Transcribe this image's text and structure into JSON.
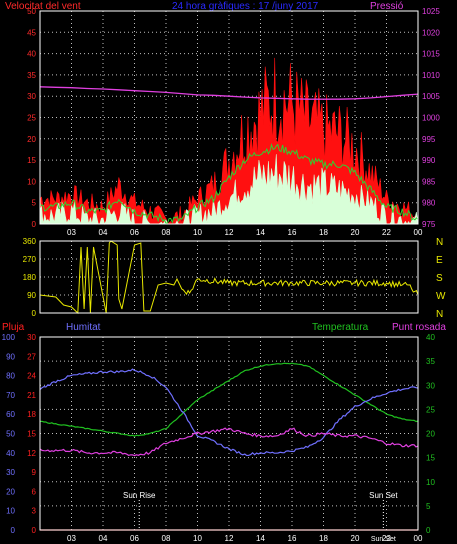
{
  "colors": {
    "wind_axis": "#ff2a2a",
    "pressure": "#e040e0",
    "title": "#2a2aff",
    "gust": "#ff1010",
    "wind_avg": "#30d030",
    "wind_min": "#d8ffd8",
    "direction": "#e8e800",
    "rain": "#ff2020",
    "humidity": "#7070ff",
    "temperature": "#20c020",
    "dewpoint": "#e040e0",
    "frame": "#ffffff",
    "grid": "#ffffff",
    "sun_text": "#ffffff"
  },
  "chart_data": [
    {
      "type": "line",
      "name": "wind_pressure",
      "title": "24 hora gràfiques : 17 /juny 2017",
      "ylabel_left": "Velocitat del vent",
      "ylabel_right": "Pressió",
      "x_ticks": [
        "03",
        "04",
        "06",
        "08",
        "10",
        "12",
        "14",
        "16",
        "18",
        "20",
        "22",
        "00"
      ],
      "y_left_ticks": [
        "0",
        "5",
        "10",
        "15",
        "20",
        "25",
        "30",
        "35",
        "40",
        "45",
        "50"
      ],
      "y_left_range": [
        0,
        50
      ],
      "y_right_ticks": [
        "975",
        "980",
        "985",
        "990",
        "995",
        "1000",
        "1005",
        "1010",
        "1015",
        "1020",
        "1025"
      ],
      "y_right_range": [
        975,
        1025
      ],
      "hours": [
        0,
        1,
        2,
        3,
        4,
        5,
        6,
        7,
        8,
        9,
        10,
        11,
        12,
        13,
        14,
        15,
        16,
        17,
        18,
        19,
        20,
        21,
        22,
        23,
        24
      ],
      "series": [
        {
          "key": "gust",
          "values": [
            6,
            6,
            7,
            5,
            4,
            9,
            5,
            3,
            1,
            2,
            6,
            9,
            15,
            22,
            26,
            30,
            28,
            24,
            22,
            21,
            18,
            12,
            6,
            4,
            2
          ]
        },
        {
          "key": "wind_avg",
          "values": [
            4,
            4,
            5,
            3,
            3,
            6,
            3,
            2,
            1,
            1,
            4,
            6,
            11,
            15,
            17,
            18,
            17,
            15,
            14,
            14,
            12,
            8,
            4,
            3,
            1
          ]
        },
        {
          "key": "wind_min",
          "values": [
            2,
            2,
            3,
            1,
            1,
            3,
            1,
            0,
            0,
            0,
            2,
            3,
            6,
            9,
            11,
            12,
            11,
            9,
            9,
            8,
            7,
            5,
            2,
            1,
            0
          ]
        },
        {
          "key": "pressure",
          "values": [
            1007.2,
            1007.1,
            1007.0,
            1006.8,
            1006.7,
            1006.5,
            1006.3,
            1006.1,
            1005.9,
            1005.6,
            1005.3,
            1005.2,
            1005.0,
            1004.8,
            1004.6,
            1004.5,
            1004.4,
            1004.3,
            1004.3,
            1004.3,
            1004.4,
            1004.6,
            1004.9,
            1005.2,
            1005.5
          ]
        }
      ]
    },
    {
      "type": "line",
      "name": "direction",
      "y_left_ticks": [
        "0",
        "90",
        "180",
        "270",
        "360"
      ],
      "y_range": [
        0,
        360
      ],
      "compass": [
        "N",
        "W",
        "S",
        "E",
        "N"
      ],
      "series": [
        {
          "key": "direction",
          "hours": [
            0,
            1,
            1.5,
            2,
            2.4,
            2.6,
            2.8,
            3,
            3.2,
            3.4,
            4.2,
            4.4,
            4.5,
            4.9,
            5,
            5.2,
            6,
            6.4,
            6.6,
            7,
            7.5,
            8,
            8.5,
            8.7,
            9,
            9.5,
            10,
            12,
            14,
            16,
            18,
            20,
            22,
            23,
            23.4,
            23.6,
            24
          ],
          "values": [
            90,
            80,
            40,
            30,
            0,
            330,
            20,
            330,
            0,
            330,
            0,
            350,
            360,
            340,
            70,
            20,
            340,
            350,
            10,
            10,
            140,
            150,
            140,
            170,
            120,
            100,
            170,
            150,
            150,
            150,
            150,
            150,
            150,
            140,
            140,
            120,
            90
          ]
        }
      ]
    },
    {
      "type": "line",
      "name": "rain_humidity_temp",
      "labels": {
        "rain": "Pluja",
        "humidity": "Humitat",
        "temperature": "Temperatura",
        "dewpoint": "Punt rosada"
      },
      "y_humidity_ticks": [
        "0",
        "10",
        "20",
        "30",
        "40",
        "50",
        "60",
        "70",
        "80",
        "90",
        "100"
      ],
      "y_humidity_range": [
        0,
        100
      ],
      "y_rain_ticks": [
        "0",
        "3",
        "6",
        "9",
        "12",
        "15",
        "18",
        "21",
        "24",
        "27",
        "30"
      ],
      "y_rain_range": [
        0,
        30
      ],
      "y_temp_ticks": [
        "0",
        "5",
        "10",
        "15",
        "20",
        "25",
        "30",
        "35",
        "40"
      ],
      "y_temp_range": [
        0,
        40
      ],
      "x_ticks": [
        "03",
        "04",
        "06",
        "08",
        "10",
        "12",
        "14",
        "16",
        "18",
        "20",
        "22",
        "00"
      ],
      "sun_rise": {
        "label": "Sun Rise",
        "hour": 6.3
      },
      "sun_set": {
        "label": "Sun Set",
        "hour": 21.8
      },
      "bottom_label": "Sun Set",
      "hours": [
        0,
        1,
        2,
        3,
        4,
        5,
        6,
        7,
        8,
        9,
        10,
        11,
        12,
        13,
        14,
        15,
        16,
        17,
        18,
        19,
        20,
        21,
        22,
        23,
        24
      ],
      "series": [
        {
          "key": "humidity",
          "values": [
            73,
            77,
            80,
            81,
            82,
            82,
            83,
            80,
            74,
            62,
            49,
            46,
            42,
            39,
            40,
            40,
            41,
            43,
            48,
            57,
            64,
            68,
            71,
            73,
            74
          ]
        },
        {
          "key": "temperature",
          "values": [
            22.5,
            22,
            21.5,
            21,
            20.5,
            20,
            19.5,
            20,
            21,
            24,
            27,
            29,
            31,
            33,
            34,
            34.5,
            34.5,
            34,
            32,
            30,
            28,
            26,
            24,
            23,
            22.5
          ]
        },
        {
          "key": "dewpoint",
          "values": [
            16.5,
            16.5,
            16.5,
            16,
            16,
            16,
            15.5,
            16,
            18,
            19,
            20,
            20.5,
            21,
            20,
            19.5,
            19.5,
            21,
            19.5,
            20,
            19.5,
            19.5,
            19,
            18,
            17.5,
            17.5
          ]
        },
        {
          "key": "rain",
          "values": [
            0,
            0,
            0,
            0,
            0,
            0,
            0,
            0,
            0,
            0,
            0,
            0,
            0,
            0,
            0,
            0,
            0,
            0,
            0,
            0,
            0,
            0,
            0,
            0,
            0
          ]
        }
      ]
    }
  ]
}
